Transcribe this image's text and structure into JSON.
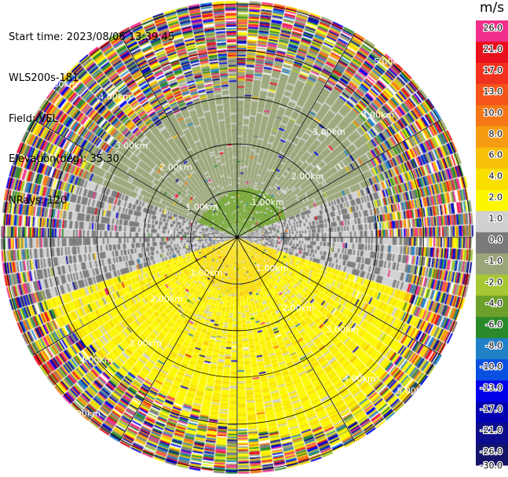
{
  "header": {
    "start_time": "Start time: 2023/08/06 13:39:45",
    "instrument": "WLS200s-181",
    "field": "Field: VEL",
    "elevation": "Elevation(deg): 35.30",
    "nrays": "NRays: 120"
  },
  "colorbar": {
    "unit": "m/s",
    "ticks": [
      "26.0",
      "21.0",
      "17.0",
      "13.0",
      "10.0",
      "8.0",
      "6.0",
      "4.0",
      "2.0",
      "1.0",
      "0.0",
      "-1.0",
      "-2.0",
      "-4.0",
      "-6.0",
      "-8.0",
      "-10.0",
      "-13.0",
      "-17.0",
      "-21.0",
      "-26.0",
      "-30.0"
    ],
    "colors": [
      "#f0308c",
      "#e8101c",
      "#f2321e",
      "#f4541a",
      "#f57716",
      "#f79b12",
      "#f7bf06",
      "#f8df00",
      "#fcf700",
      "#d0d0d0",
      "#7a7a7a",
      "#9aa67a",
      "#a6c832",
      "#6da02a",
      "#2a8a2a",
      "#2080c8",
      "#0a50e0",
      "#0000e8",
      "#0000b0",
      "#0c0c8c",
      "#14146a"
    ]
  },
  "chart_data": {
    "type": "polar_ppi",
    "title": "",
    "field": "VEL",
    "units": "m/s",
    "nrays": 120,
    "elevation_deg": 35.3,
    "range_rings_km": [
      1.0,
      2.0,
      3.0,
      4.0,
      5.0
    ],
    "ring_labels": [
      [
        "1.00km",
        "1.00km",
        "1.00km",
        "1.00km"
      ],
      [
        "2.00km",
        "2.00km",
        "2.00km",
        "2.00km"
      ],
      [
        "3.00km",
        "3.00km",
        "3.00km",
        "3.00km"
      ],
      [
        "4.00km",
        "4.00km",
        "4.00km",
        "4.00km"
      ],
      [
        "5.00km",
        "5.00km",
        "5.00km",
        "5.00km"
      ]
    ],
    "max_range_km": 5.0,
    "colorbar_range": [
      -30.0,
      26.0
    ],
    "pattern": {
      "near_north_velocity": -5.0,
      "mid_north_velocity": -1.5,
      "near_south_velocity": 3.5,
      "mid_south_velocity": 1.8,
      "noise_start_km": 3.3
    }
  }
}
